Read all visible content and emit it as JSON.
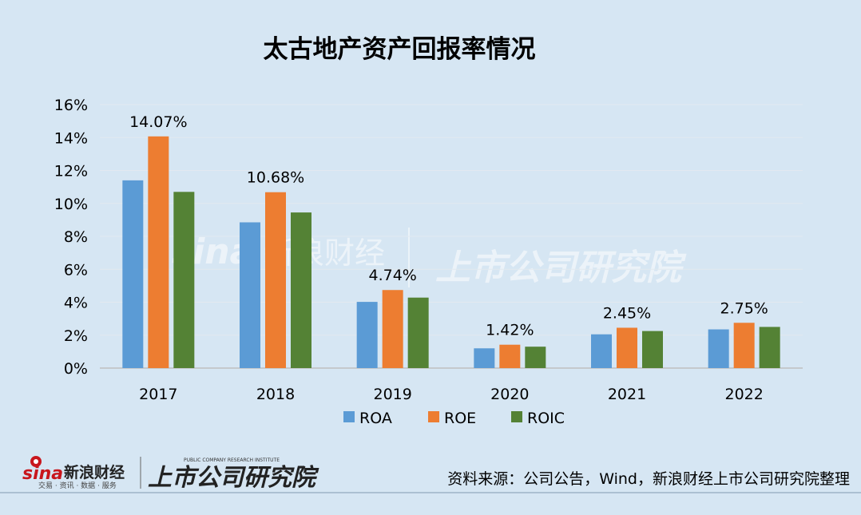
{
  "chart_data": {
    "type": "bar",
    "title": "太古地产资产回报率情况",
    "categories": [
      "2017",
      "2018",
      "2019",
      "2020",
      "2021",
      "2022"
    ],
    "series": [
      {
        "name": "ROA",
        "color": "#5b9bd5",
        "values": [
          11.4,
          8.85,
          4.02,
          1.2,
          2.05,
          2.35
        ]
      },
      {
        "name": "ROE",
        "color": "#ed7d31",
        "values": [
          14.07,
          10.68,
          4.74,
          1.42,
          2.45,
          2.75
        ]
      },
      {
        "name": "ROIC",
        "color": "#548235",
        "values": [
          10.7,
          9.45,
          4.28,
          1.3,
          2.25,
          2.5
        ]
      }
    ],
    "data_labels": [
      "14.07%",
      "10.68%",
      "4.74%",
      "1.42%",
      "2.45%",
      "2.75%"
    ],
    "ylim": [
      0,
      16
    ],
    "yticks": [
      "0%",
      "2%",
      "4%",
      "6%",
      "8%",
      "10%",
      "12%",
      "14%",
      "16%"
    ],
    "grid": true,
    "legend_position": "bottom",
    "xlabel": "",
    "ylabel": ""
  },
  "footer": {
    "source": "资料来源：公司公告，Wind，新浪财经上市公司研究院整理",
    "logo_sina": "sina",
    "logo_sina_cn": "新浪财经",
    "logo_sina_sub": "交易 · 资讯 · 数据 · 服务",
    "logo_institute": "上市公司研究院",
    "logo_institute_en": "PUBLIC COMPANY RESEARCH INSTITUTE"
  }
}
